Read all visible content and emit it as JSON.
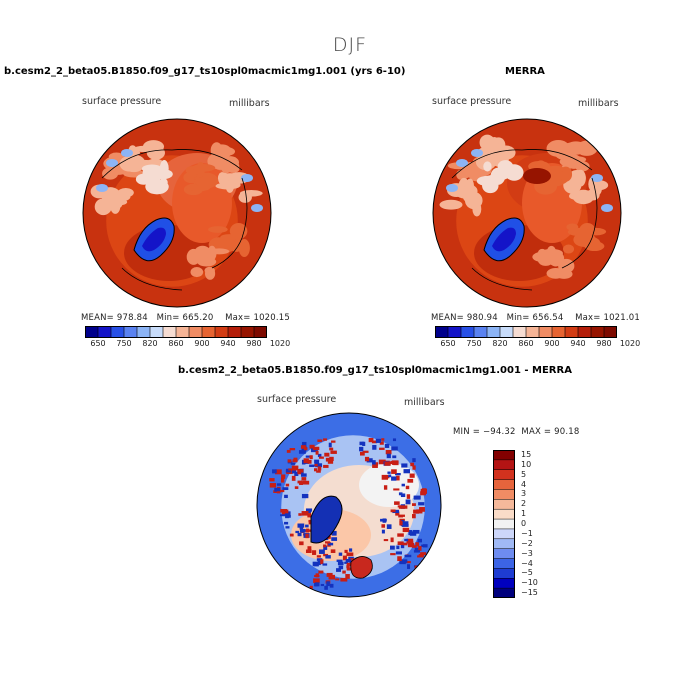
{
  "page": {
    "title": "DJF"
  },
  "panels": [
    {
      "id": "model",
      "title": "b.cesm2_2_beta05.B1850.f09_g17_ts10spl0macmic1mg1.001 (yrs 6-10)",
      "variable": "surface pressure",
      "units": "millibars",
      "stats": {
        "mean": "978.84",
        "min": "665.20",
        "max": "1020.15"
      },
      "colorbar_labels": [
        "650",
        "750",
        "820",
        "860",
        "900",
        "940",
        "980",
        "1020"
      ]
    },
    {
      "id": "obs",
      "title": "MERRA",
      "variable": "surface pressure",
      "units": "millibars",
      "stats": {
        "mean": "980.94",
        "min": "656.54",
        "max": "1021.01"
      },
      "colorbar_labels": [
        "650",
        "750",
        "820",
        "860",
        "900",
        "940",
        "980",
        "1020"
      ]
    },
    {
      "id": "diff",
      "title": "b.cesm2_2_beta05.B1850.f09_g17_ts10spl0macmic1mg1.001 - MERRA",
      "variable": "surface pressure",
      "units": "millibars",
      "stats": {
        "min": "−94.32",
        "max": "90.18"
      },
      "colorbar_labels": [
        "15",
        "10",
        "5",
        "4",
        "3",
        "2",
        "1",
        "0",
        "−1",
        "−2",
        "−3",
        "−4",
        "−5",
        "−10",
        "−15"
      ]
    }
  ],
  "labels": {
    "mean": "MEAN=",
    "min": "Min=",
    "max": "Max=",
    "min_upper": "MIN =",
    "max_upper": "MAX ="
  },
  "colors": {
    "abs_scale": [
      "#00008b",
      "#1414c8",
      "#2850e6",
      "#5a82f0",
      "#8cb4f5",
      "#c8dcfa",
      "#f5dcd2",
      "#f5b496",
      "#f08c64",
      "#e66432",
      "#d23c14",
      "#b41e0a",
      "#961400",
      "#7d0a00"
    ],
    "diff_scale": [
      "#00007d",
      "#0000be",
      "#1e3cd2",
      "#3c64e6",
      "#6e8cf0",
      "#a0b9f5",
      "#cdd7fa",
      "#f2f2f2",
      "#fadcc8",
      "#f5b99b",
      "#f08c64",
      "#e6643c",
      "#d2321e",
      "#b41414",
      "#820000"
    ]
  }
}
